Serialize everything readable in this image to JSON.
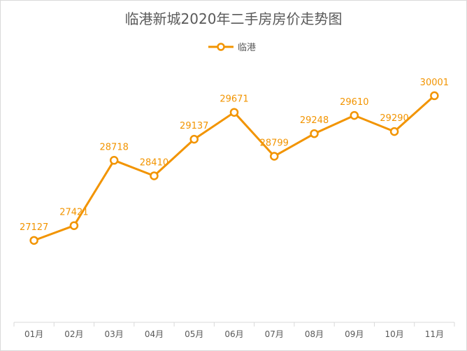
{
  "chart_data": {
    "type": "line",
    "title": "临港新城2020年二手房房价走势图",
    "categories": [
      "01月",
      "02月",
      "03月",
      "04月",
      "05月",
      "06月",
      "07月",
      "08月",
      "09月",
      "10月",
      "11月"
    ],
    "series": [
      {
        "name": "临港",
        "values": [
          27127,
          27421,
          28718,
          28410,
          29137,
          29671,
          28799,
          29248,
          29610,
          29290,
          30001
        ],
        "color": "#F29400"
      }
    ],
    "ylim": [
      25500,
      30500
    ],
    "grid": false,
    "legend": "top",
    "data_labels": true,
    "xlabel": "",
    "ylabel": ""
  }
}
